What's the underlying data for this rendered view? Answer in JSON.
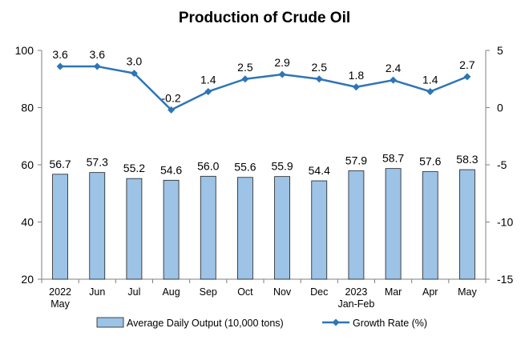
{
  "chart_data": {
    "type": "bar",
    "title": "Production of Crude Oil",
    "categories": [
      [
        "2022",
        "May"
      ],
      [
        "Jun"
      ],
      [
        "Jul"
      ],
      [
        "Aug"
      ],
      [
        "Sep"
      ],
      [
        "Oct"
      ],
      [
        "Nov"
      ],
      [
        "Dec"
      ],
      [
        "2023",
        "Jan-Feb"
      ],
      [
        "Mar"
      ],
      [
        "Apr"
      ],
      [
        "May"
      ]
    ],
    "series": [
      {
        "name": "Average Daily Output (10,000 tons)",
        "type": "bar",
        "axis": "left",
        "values": [
          56.7,
          57.3,
          55.2,
          54.6,
          56.0,
          55.6,
          55.9,
          54.4,
          57.9,
          58.7,
          57.6,
          58.3
        ],
        "labels": [
          "56.7",
          "57.3",
          "55.2",
          "54.6",
          "56.0",
          "55.6",
          "55.9",
          "54.4",
          "57.9",
          "58.7",
          "57.6",
          "58.3"
        ]
      },
      {
        "name": "Growth Rate (%)",
        "type": "line",
        "axis": "right",
        "values": [
          3.6,
          3.6,
          3.0,
          -0.2,
          1.4,
          2.5,
          2.9,
          2.5,
          1.8,
          2.4,
          1.4,
          2.7
        ],
        "labels": [
          "3.6",
          "3.6",
          "3.0",
          "-0.2",
          "1.4",
          "2.5",
          "2.9",
          "2.5",
          "1.8",
          "2.4",
          "1.4",
          "2.7"
        ]
      }
    ],
    "y_left": {
      "min": 20,
      "max": 100,
      "ticks": [
        "20",
        "40",
        "60",
        "80",
        "100"
      ]
    },
    "y_right": {
      "min": -15,
      "max": 5,
      "ticks": [
        "-15",
        "-10",
        "-5",
        "0",
        "5"
      ]
    },
    "grid": false,
    "legend_position": "bottom",
    "colors": {
      "bar_fill": "#9dc3e6",
      "bar_stroke": "#1f1f1f",
      "line": "#2e75b6"
    }
  }
}
